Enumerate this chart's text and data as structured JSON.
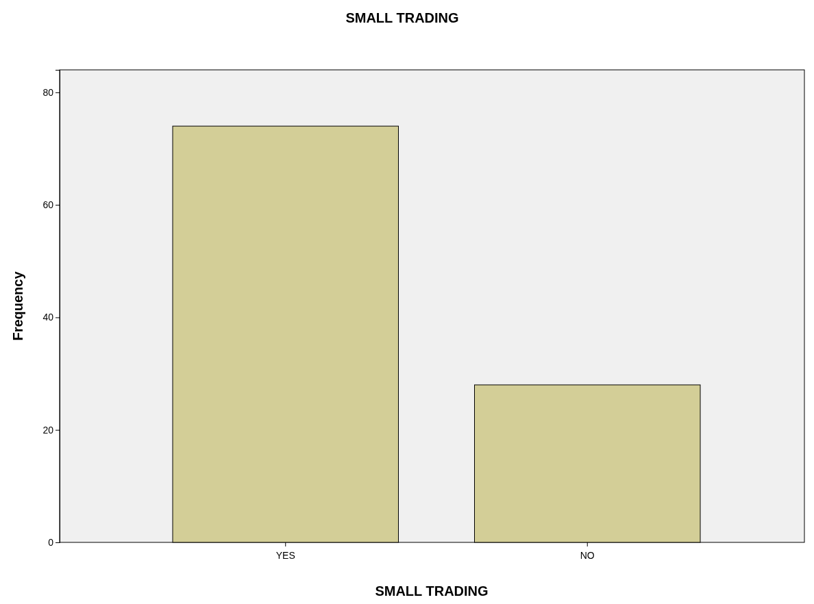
{
  "chart_data": {
    "type": "bar",
    "title": "SMALL TRADING",
    "xlabel": "SMALL TRADING",
    "ylabel": "Frequency",
    "categories": [
      "YES",
      "NO"
    ],
    "values": [
      74,
      28
    ],
    "color": "#d3ce97",
    "ylim": [
      0,
      84
    ],
    "yticks": [
      0,
      20,
      40,
      60,
      80
    ],
    "grid": false
  }
}
